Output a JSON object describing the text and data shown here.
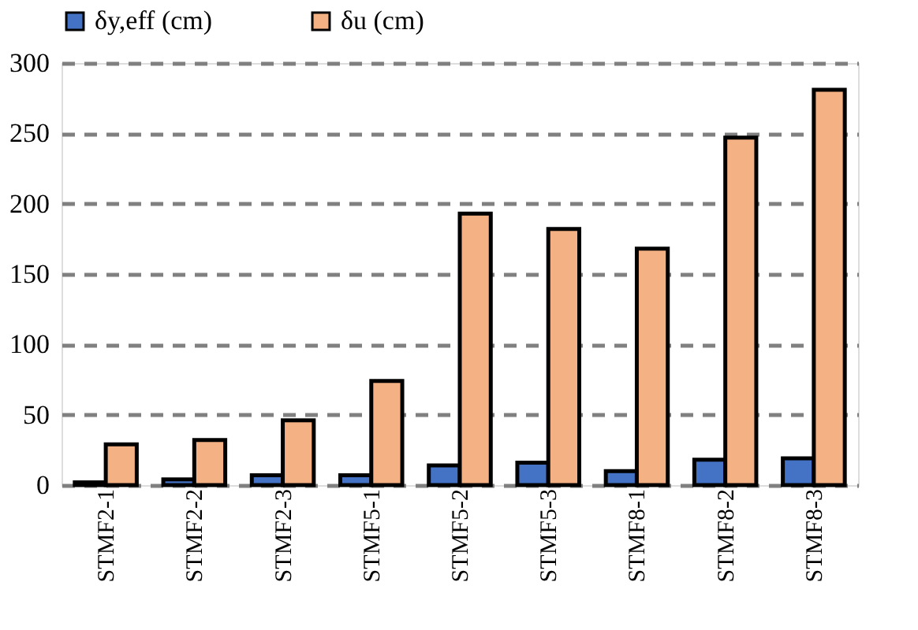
{
  "chart_data": {
    "type": "bar",
    "categories": [
      "STMF2-1",
      "STMF2-2",
      "STMF2-3",
      "STMF5-1",
      "STMF5-2",
      "STMF5-3",
      "STMF8-1",
      "STMF8-2",
      "STMF8-3"
    ],
    "series": [
      {
        "name": "δy,eff (cm)",
        "color": "#4472c4",
        "values": [
          2,
          4,
          7,
          7,
          14,
          16,
          10,
          18,
          19
        ]
      },
      {
        "name": "δu (cm)",
        "color": "#f4b183",
        "values": [
          29,
          32,
          46,
          74,
          193,
          182,
          168,
          247,
          281
        ]
      }
    ],
    "ylim": [
      0,
      300
    ],
    "yticks": [
      0,
      50,
      100,
      150,
      200,
      250,
      300
    ],
    "grid": "y",
    "legend": "top"
  }
}
